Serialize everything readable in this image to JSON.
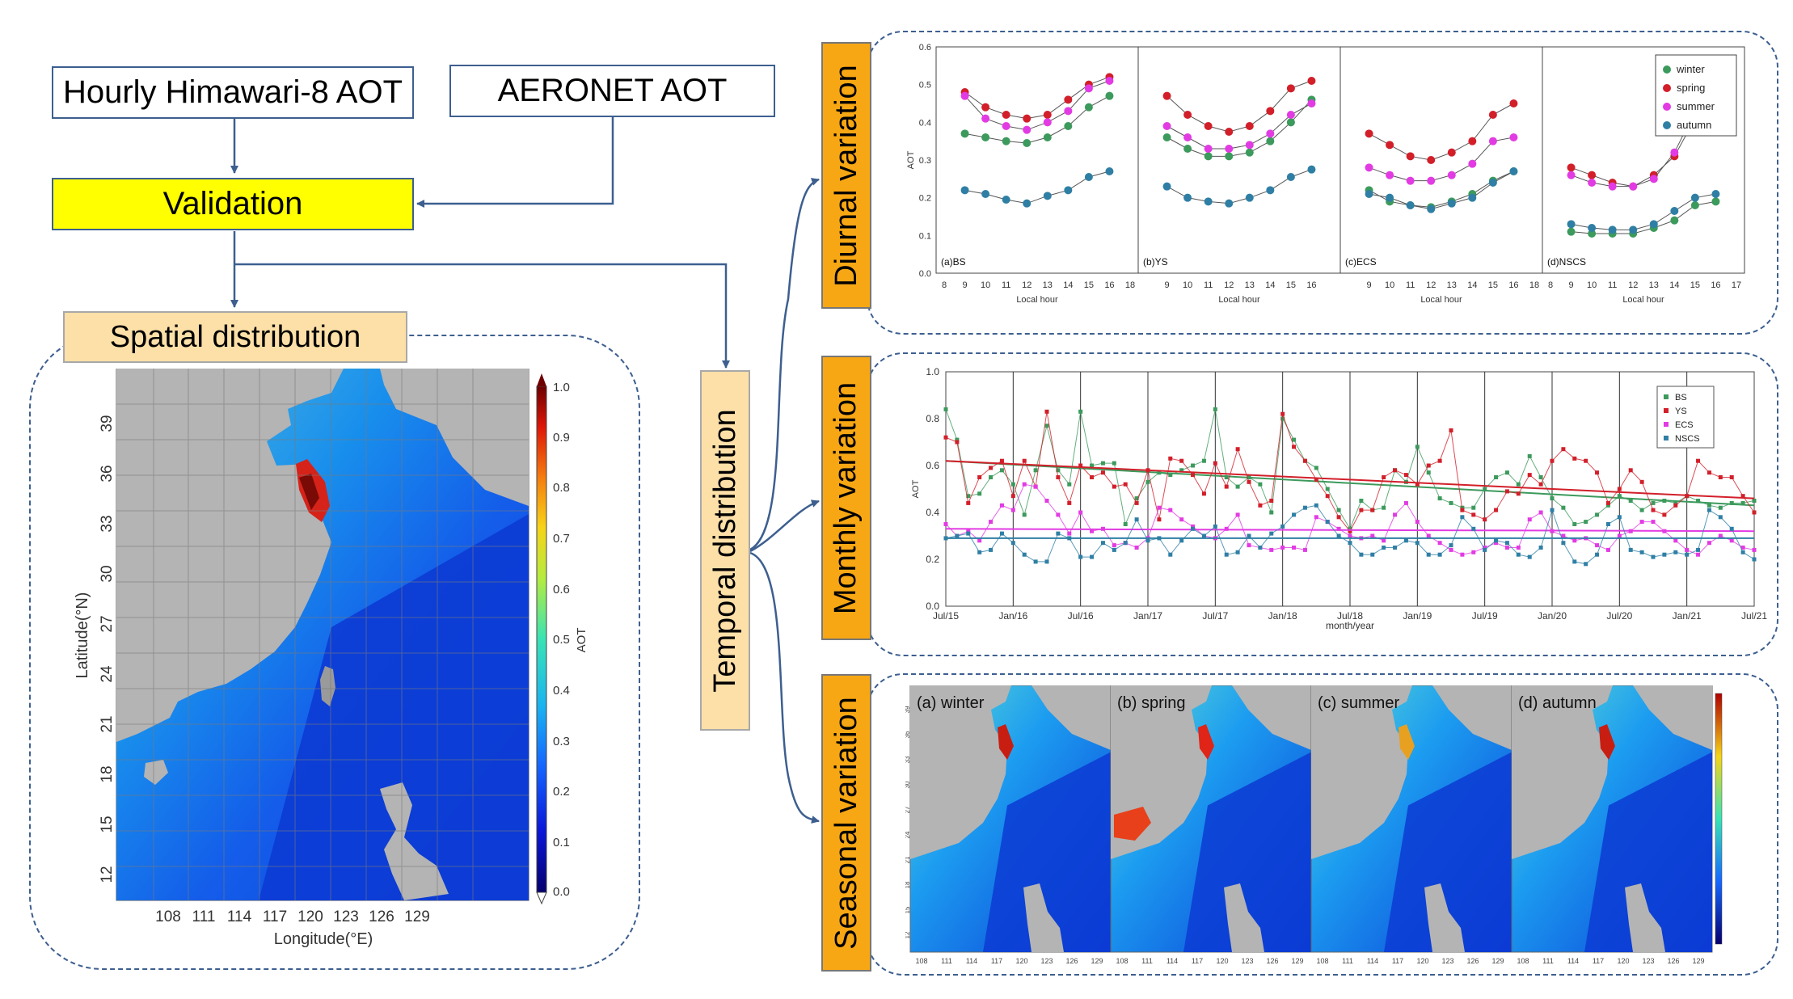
{
  "flow": {
    "hourly_label": "Hourly Himawari-8 AOT",
    "aeronet_label": "AERONET AOT",
    "validation_label": "Validation",
    "spatial_label": "Spatial distribution",
    "temporal_label": "Temporal distribution",
    "diurnal_label": "Diurnal variation",
    "monthly_label": "Monthly variation",
    "seasonal_label": "Seasonal variation"
  },
  "spatial_map": {
    "xlabel": "Longitude(°E)",
    "ylabel": "Latitude(°N)",
    "x_ticks": [
      "108",
      "111",
      "114",
      "117",
      "120",
      "123",
      "126",
      "129"
    ],
    "y_ticks": [
      "39",
      "36",
      "33",
      "30",
      "27",
      "24",
      "21",
      "18",
      "15",
      "12"
    ],
    "colorbar_label": "AOT",
    "colorbar_ticks": [
      "1.0",
      "0.9",
      "0.8",
      "0.7",
      "0.6",
      "0.5",
      "0.4",
      "0.3",
      "0.2",
      "0.1",
      "0.0"
    ]
  },
  "chart_data": [
    {
      "type": "line",
      "name": "diurnal",
      "ylabel": "AOT",
      "xlabel": "Local hour",
      "ylim": [
        0.0,
        0.6
      ],
      "y_ticks": [
        "0.6",
        "0.5",
        "0.4",
        "0.3",
        "0.2",
        "0.1",
        "0.0"
      ],
      "legend": [
        "winter",
        "spring",
        "summer",
        "autumn"
      ],
      "legend_position": "top-right",
      "colors": {
        "winter": "#3c9a5c",
        "spring": "#d21f2a",
        "summer": "#e23be3",
        "autumn": "#2f7fa5"
      },
      "panels": [
        {
          "label": "(a)BS",
          "x_ticks": [
            "8",
            "9",
            "10",
            "11",
            "12",
            "13",
            "14",
            "15",
            "16",
            "18"
          ],
          "x": [
            9,
            10,
            11,
            12,
            13,
            14,
            15,
            16
          ],
          "series": {
            "winter": [
              0.37,
              0.36,
              0.35,
              0.345,
              0.36,
              0.39,
              0.44,
              0.47
            ],
            "spring": [
              0.48,
              0.44,
              0.42,
              0.41,
              0.42,
              0.46,
              0.5,
              0.52
            ],
            "summer": [
              0.47,
              0.41,
              0.39,
              0.38,
              0.4,
              0.43,
              0.49,
              0.51
            ],
            "autumn": [
              0.22,
              0.21,
              0.195,
              0.185,
              0.205,
              0.22,
              0.255,
              0.27
            ]
          }
        },
        {
          "label": "(b)YS",
          "x_ticks": [
            "9",
            "10",
            "11",
            "12",
            "13",
            "14",
            "15",
            "16"
          ],
          "x": [
            9,
            10,
            11,
            12,
            13,
            14,
            15,
            16
          ],
          "series": {
            "winter": [
              0.36,
              0.33,
              0.31,
              0.31,
              0.32,
              0.35,
              0.4,
              0.46
            ],
            "spring": [
              0.47,
              0.42,
              0.39,
              0.375,
              0.39,
              0.43,
              0.49,
              0.51
            ],
            "summer": [
              0.39,
              0.36,
              0.33,
              0.33,
              0.34,
              0.37,
              0.42,
              0.45
            ],
            "autumn": [
              0.23,
              0.2,
              0.19,
              0.185,
              0.2,
              0.22,
              0.255,
              0.275
            ]
          }
        },
        {
          "label": "(c)ECS",
          "x_ticks": [
            "9",
            "10",
            "11",
            "12",
            "13",
            "14",
            "15",
            "16",
            "18"
          ],
          "x": [
            9,
            10,
            11,
            12,
            13,
            14,
            15,
            16
          ],
          "series": {
            "winter": [
              0.22,
              0.19,
              0.18,
              0.175,
              0.19,
              0.21,
              0.245,
              0.27
            ],
            "spring": [
              0.37,
              0.34,
              0.31,
              0.3,
              0.32,
              0.35,
              0.42,
              0.45
            ],
            "summer": [
              0.28,
              0.26,
              0.245,
              0.245,
              0.26,
              0.29,
              0.35,
              0.36
            ],
            "autumn": [
              0.21,
              0.2,
              0.18,
              0.17,
              0.185,
              0.2,
              0.24,
              0.27
            ]
          }
        },
        {
          "label": "(d)NSCS",
          "x_ticks": [
            "8",
            "9",
            "10",
            "11",
            "12",
            "13",
            "14",
            "15",
            "16",
            "17"
          ],
          "x": [
            9,
            10,
            11,
            12,
            13,
            14,
            15,
            16
          ],
          "series": {
            "winter": [
              0.11,
              0.105,
              0.105,
              0.105,
              0.12,
              0.14,
              0.18,
              0.19
            ],
            "spring": [
              0.28,
              0.26,
              0.24,
              0.23,
              0.26,
              0.31,
              0.41,
              0.43
            ],
            "summer": [
              0.26,
              0.24,
              0.23,
              0.23,
              0.25,
              0.32,
              0.43,
              0.465
            ],
            "autumn": [
              0.13,
              0.12,
              0.115,
              0.115,
              0.13,
              0.165,
              0.2,
              0.21
            ]
          }
        }
      ]
    },
    {
      "type": "line",
      "name": "monthly",
      "ylabel": "AOT",
      "xlabel": "month/year",
      "ylim": [
        0.0,
        1.0
      ],
      "y_ticks": [
        "1.0",
        "0.8",
        "0.6",
        "0.4",
        "0.2",
        "0.0"
      ],
      "x_ticks": [
        "Jul/15",
        "Jan/16",
        "Jul/16",
        "Jan/17",
        "Jul/17",
        "Jan/18",
        "Jul/18",
        "Jan/19",
        "Jul/19",
        "Jan/20",
        "Jul/20",
        "Jan/21",
        "Jul/21"
      ],
      "legend": [
        "BS",
        "YS",
        "ECS",
        "NSCS"
      ],
      "legend_position": "top-right",
      "colors": {
        "BS": "#3c9a5c",
        "YS": "#d21f2a",
        "ECS": "#e23be3",
        "NSCS": "#2f7fa5"
      },
      "trend": {
        "BS": [
          0.62,
          0.43
        ],
        "YS": [
          0.62,
          0.46
        ],
        "ECS": [
          0.33,
          0.32
        ],
        "NSCS": [
          0.29,
          0.29
        ]
      },
      "series": [
        {
          "name": "BS",
          "values": [
            0.84,
            0.71,
            0.47,
            0.48,
            0.55,
            0.58,
            0.52,
            0.39,
            0.58,
            0.77,
            0.58,
            0.52,
            0.83,
            0.6,
            0.61,
            0.61,
            0.35,
            0.46,
            0.53,
            0.57,
            0.56,
            0.58,
            0.6,
            0.62,
            0.84,
            0.55,
            0.51,
            0.55,
            0.52,
            0.4,
            0.8,
            0.71,
            0.62,
            0.59,
            0.5,
            0.41,
            0.33,
            0.45,
            0.41,
            0.42,
            0.58,
            0.53,
            0.68,
            0.57,
            0.46,
            0.44,
            0.42,
            0.42,
            0.5,
            0.55,
            0.57,
            0.52,
            0.64,
            0.55,
            0.46,
            0.42,
            0.35,
            0.36,
            0.39,
            0.43,
            0.47,
            0.45,
            0.41,
            0.44,
            0.45,
            0.44,
            0.47,
            0.45,
            0.43,
            0.42,
            0.44,
            0.44,
            0.45
          ]
        },
        {
          "name": "YS",
          "values": [
            0.72,
            0.7,
            0.44,
            0.55,
            0.59,
            0.62,
            0.47,
            0.62,
            0.51,
            0.83,
            0.55,
            0.44,
            0.6,
            0.55,
            0.57,
            0.51,
            0.52,
            0.44,
            0.58,
            0.37,
            0.63,
            0.62,
            0.56,
            0.48,
            0.61,
            0.51,
            0.67,
            0.53,
            0.43,
            0.45,
            0.82,
            0.68,
            0.62,
            0.54,
            0.47,
            0.38,
            0.32,
            0.41,
            0.41,
            0.55,
            0.58,
            0.56,
            0.52,
            0.6,
            0.62,
            0.75,
            0.41,
            0.39,
            0.37,
            0.41,
            0.49,
            0.48,
            0.56,
            0.52,
            0.62,
            0.67,
            0.63,
            0.62,
            0.57,
            0.44,
            0.5,
            0.58,
            0.53,
            0.41,
            0.39,
            0.43,
            0.47,
            0.62,
            0.57,
            0.55,
            0.55,
            0.47,
            0.4
          ]
        },
        {
          "name": "ECS",
          "values": [
            0.35,
            0.3,
            0.32,
            0.28,
            0.36,
            0.43,
            0.41,
            0.52,
            0.51,
            0.45,
            0.39,
            0.31,
            0.4,
            0.32,
            0.33,
            0.26,
            0.27,
            0.25,
            0.29,
            0.42,
            0.41,
            0.37,
            0.34,
            0.3,
            0.29,
            0.33,
            0.39,
            0.26,
            0.25,
            0.24,
            0.25,
            0.25,
            0.24,
            0.38,
            0.36,
            0.33,
            0.3,
            0.29,
            0.3,
            0.28,
            0.39,
            0.44,
            0.36,
            0.3,
            0.27,
            0.24,
            0.22,
            0.23,
            0.25,
            0.27,
            0.25,
            0.25,
            0.37,
            0.4,
            0.32,
            0.3,
            0.28,
            0.29,
            0.26,
            0.24,
            0.3,
            0.32,
            0.36,
            0.36,
            0.32,
            0.28,
            0.24,
            0.22,
            0.27,
            0.3,
            0.28,
            0.25,
            0.24
          ]
        },
        {
          "name": "NSCS",
          "values": [
            0.29,
            0.3,
            0.31,
            0.23,
            0.24,
            0.31,
            0.27,
            0.22,
            0.19,
            0.19,
            0.31,
            0.29,
            0.21,
            0.21,
            0.27,
            0.24,
            0.27,
            0.37,
            0.28,
            0.29,
            0.22,
            0.28,
            0.33,
            0.3,
            0.34,
            0.22,
            0.23,
            0.3,
            0.25,
            0.31,
            0.34,
            0.39,
            0.42,
            0.43,
            0.36,
            0.3,
            0.27,
            0.22,
            0.22,
            0.25,
            0.25,
            0.28,
            0.27,
            0.22,
            0.22,
            0.26,
            0.38,
            0.33,
            0.24,
            0.28,
            0.27,
            0.22,
            0.21,
            0.25,
            0.41,
            0.27,
            0.19,
            0.18,
            0.22,
            0.35,
            0.38,
            0.24,
            0.23,
            0.21,
            0.22,
            0.23,
            0.22,
            0.24,
            0.41,
            0.38,
            0.33,
            0.23,
            0.2
          ]
        }
      ]
    }
  ],
  "seasonal": {
    "panels": [
      {
        "label": "(a) winter"
      },
      {
        "label": "(b) spring"
      },
      {
        "label": "(c) summer"
      },
      {
        "label": "(d) autumn"
      }
    ],
    "x_ticks": [
      "108",
      "111",
      "114",
      "117",
      "120",
      "123",
      "126",
      "129"
    ],
    "y_ticks": [
      "39",
      "36",
      "33",
      "30",
      "27",
      "24",
      "21",
      "18",
      "15",
      "12"
    ]
  }
}
